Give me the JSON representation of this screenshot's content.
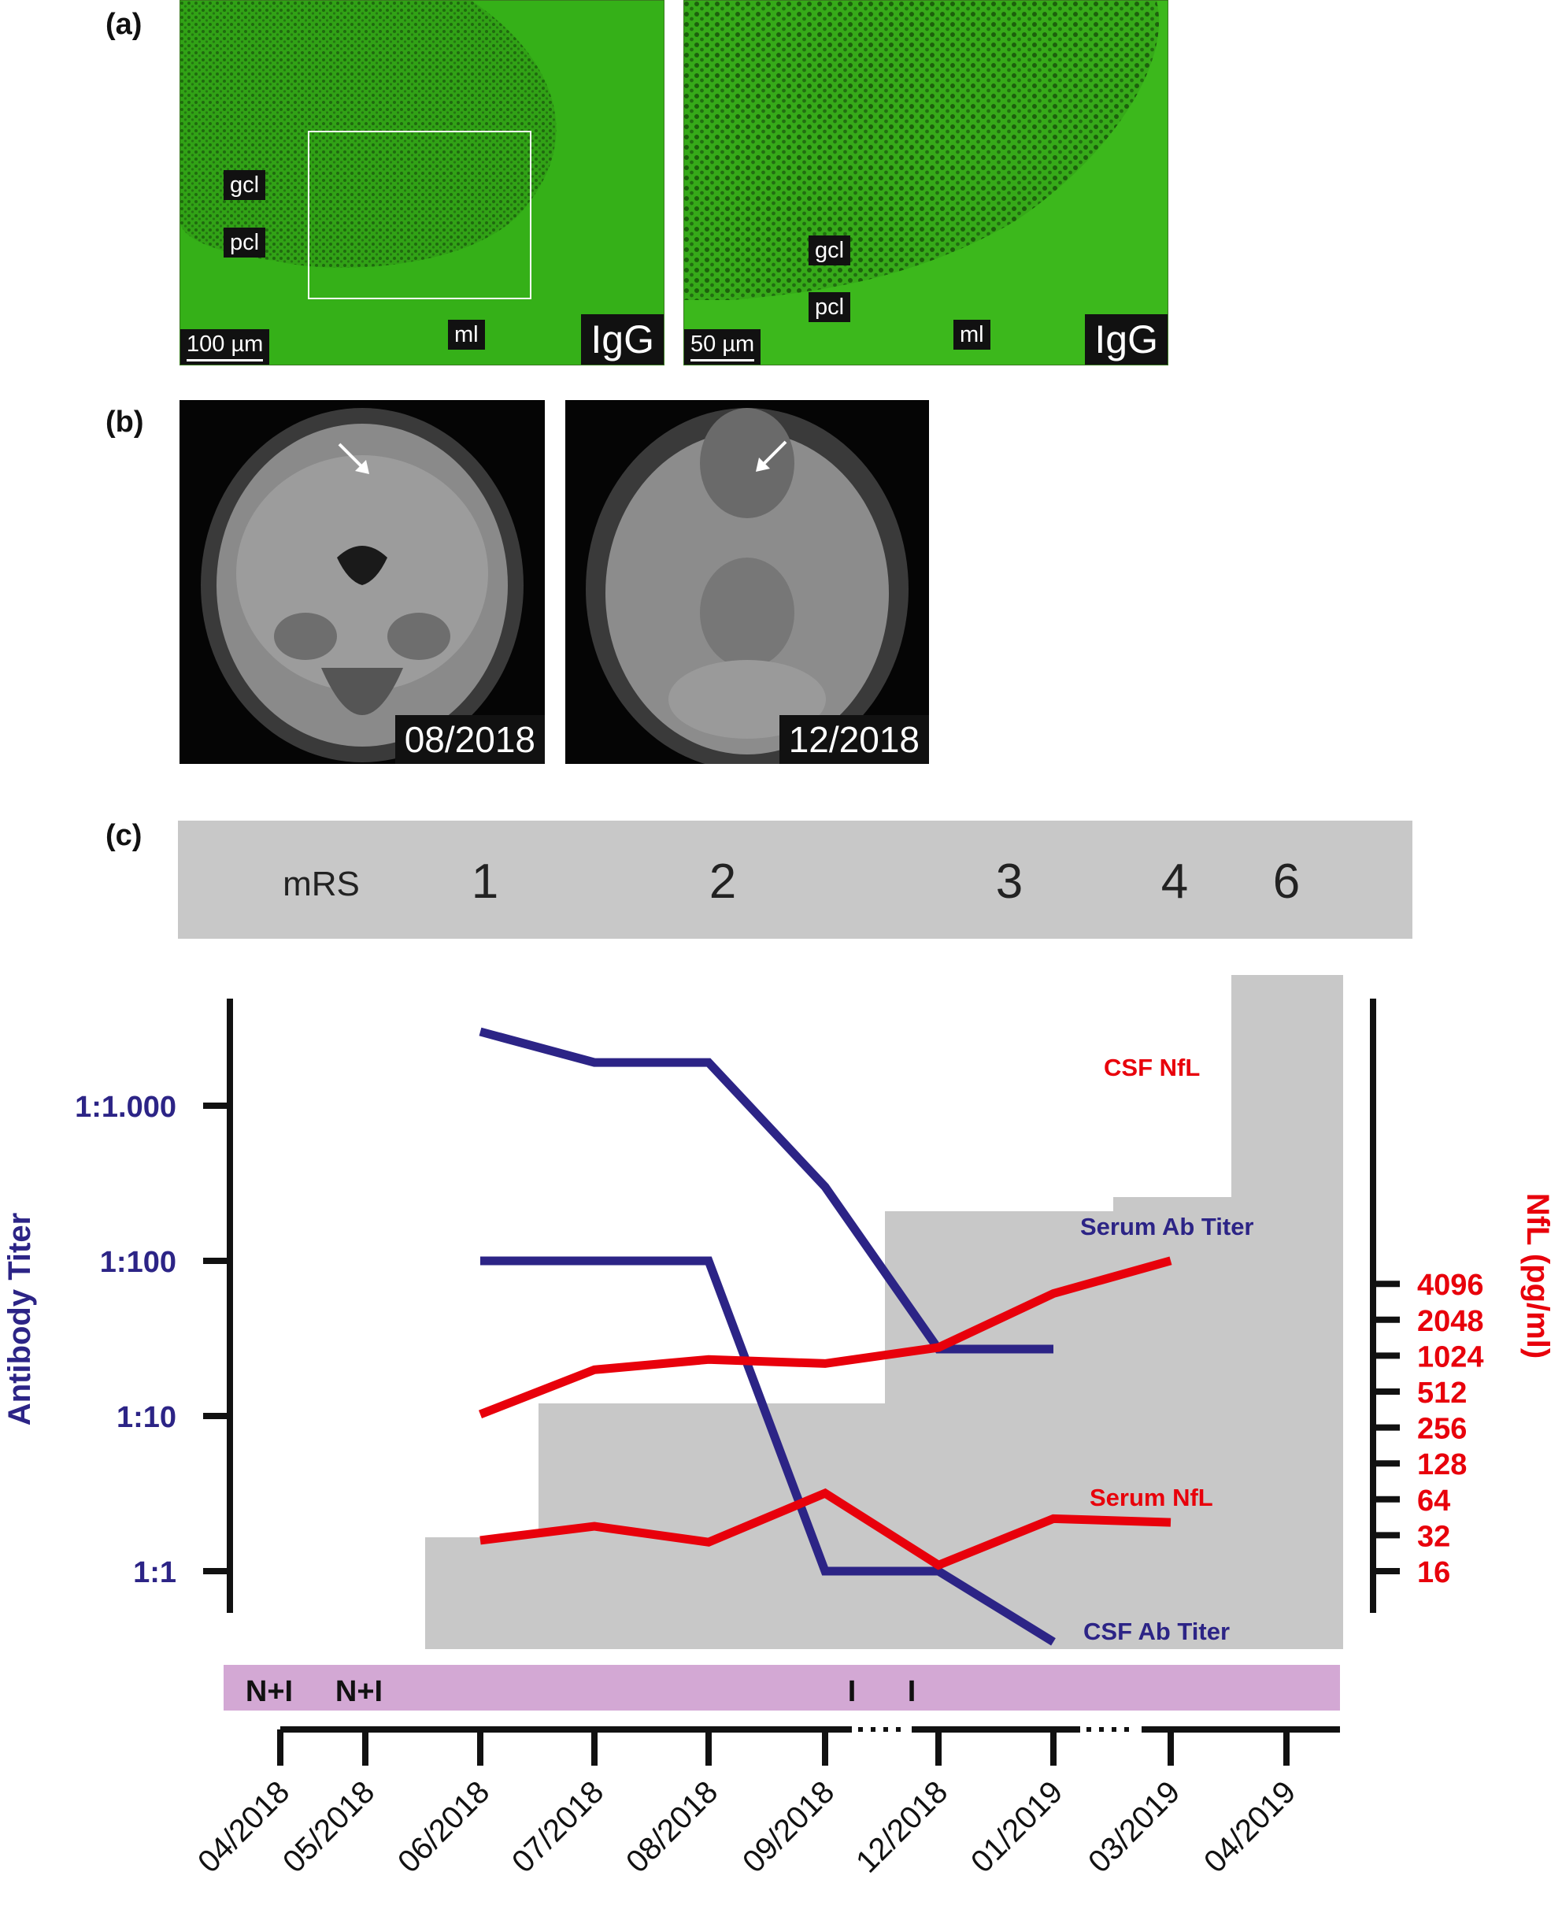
{
  "panels": {
    "a": {
      "label": "(a)",
      "left": {
        "tags": [
          "gcl",
          "pcl",
          "ml"
        ],
        "scale": "100 µm",
        "stain": "IgG"
      },
      "right": {
        "tags": [
          "gcl",
          "pcl",
          "ml"
        ],
        "scale": "50 µm",
        "stain": "IgG"
      }
    },
    "b": {
      "label": "(b)",
      "images": [
        {
          "date": "08/2018"
        },
        {
          "date": "12/2018"
        }
      ]
    },
    "c": {
      "label": "(c)"
    }
  },
  "colors": {
    "antibody": "#2c2486",
    "nfl": "#e8000b",
    "mrs_fill": "#c8c8c8",
    "treatment_bar": "#d3a8d4",
    "micro_green": "#35b018"
  },
  "chart_data": {
    "type": "line",
    "mrs": {
      "label": "mRS",
      "scores": [
        {
          "score": "1",
          "from": "06/2018",
          "to": "07/2018"
        },
        {
          "score": "2",
          "from": "07/2018",
          "to": "09/2018"
        },
        {
          "score": "3",
          "from": "12/2018",
          "to": "03/2019"
        },
        {
          "score": "4",
          "from": "03/2019",
          "to": "04/2019"
        },
        {
          "score": "6",
          "from": "04/2019",
          "to": "04/2019"
        }
      ]
    },
    "categories": [
      "04/2018",
      "05/2018",
      "06/2018",
      "07/2018",
      "08/2018",
      "09/2018",
      "12/2018",
      "01/2019",
      "03/2019",
      "04/2019"
    ],
    "axis_breaks": [
      "09/2018-12/2018",
      "01/2019-03/2019"
    ],
    "y_left": {
      "label": "Antibody Titer",
      "scale": "log10",
      "ticks": [
        {
          "value": 1,
          "label": "1:1"
        },
        {
          "value": 10,
          "label": "1:10"
        },
        {
          "value": 100,
          "label": "1:100"
        },
        {
          "value": 1000,
          "label": "1:1.000"
        }
      ]
    },
    "y_right": {
      "label": "NfL (pg/ml)",
      "scale": "log2",
      "ticks": [
        16,
        32,
        64,
        128,
        256,
        512,
        1024,
        2048,
        4096
      ]
    },
    "series": [
      {
        "name": "Serum Ab Titer",
        "axis": "left",
        "color": "#2c2486",
        "points": [
          [
            "06/2018",
            3000
          ],
          [
            "07/2018",
            1900
          ],
          [
            "08/2018",
            1900
          ],
          [
            "09/2018",
            300
          ],
          [
            "12/2018",
            27
          ],
          [
            "01/2019",
            27
          ]
        ]
      },
      {
        "name": "CSF Ab Titer",
        "axis": "left",
        "color": "#2c2486",
        "points": [
          [
            "06/2018",
            100
          ],
          [
            "07/2018",
            100
          ],
          [
            "08/2018",
            100
          ],
          [
            "09/2018",
            1
          ],
          [
            "12/2018",
            1
          ],
          [
            "01/2019",
            0.35
          ]
        ]
      },
      {
        "name": "CSF NfL",
        "axis": "right",
        "color": "#e8000b",
        "points": [
          [
            "06/2018",
            330
          ],
          [
            "07/2018",
            780
          ],
          [
            "08/2018",
            950
          ],
          [
            "09/2018",
            880
          ],
          [
            "12/2018",
            1200
          ],
          [
            "01/2019",
            3400
          ],
          [
            "03/2019",
            6400
          ]
        ]
      },
      {
        "name": "Serum NfL",
        "axis": "right",
        "color": "#e8000b",
        "points": [
          [
            "06/2018",
            29
          ],
          [
            "07/2018",
            38
          ],
          [
            "08/2018",
            28
          ],
          [
            "09/2018",
            72
          ],
          [
            "12/2018",
            18
          ],
          [
            "01/2019",
            44
          ],
          [
            "03/2019",
            41
          ]
        ]
      }
    ],
    "treatments": [
      {
        "label": "N+I",
        "at": "04/2018"
      },
      {
        "label": "N+I",
        "at": "05/2018"
      },
      {
        "label": "I",
        "at": "09/2018"
      },
      {
        "label": "I",
        "at": "12/2018"
      }
    ]
  }
}
